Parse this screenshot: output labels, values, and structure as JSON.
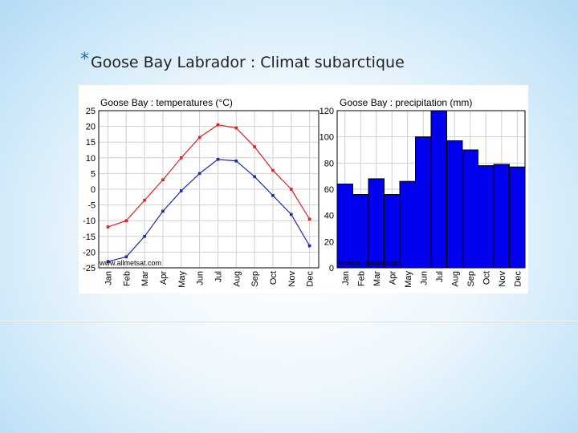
{
  "slide": {
    "bullet": "*",
    "title": "Goose Bay Labrador : Climat subarctique"
  },
  "chart_data": [
    {
      "type": "line",
      "title": "Goose Bay : temperatures (°C)",
      "categories": [
        "Jan",
        "Feb",
        "Mar",
        "Apr",
        "May",
        "Jun",
        "Jul",
        "Aug",
        "Sep",
        "Oct",
        "Nov",
        "Dec"
      ],
      "yticks": [
        "25",
        "20",
        "15",
        "10",
        "5",
        "0",
        "-5",
        "-10",
        "-15",
        "-20",
        "-25"
      ],
      "ylim": [
        -25,
        25
      ],
      "grid": true,
      "watermark": "www.allmetsat.com",
      "series": [
        {
          "color": "#dd2222",
          "values": [
            -12,
            -10,
            -3.5,
            3,
            10,
            16.5,
            20.5,
            19.5,
            13.5,
            6,
            0,
            -9.5
          ]
        },
        {
          "color": "#1a2aa8",
          "values": [
            -23,
            -21.5,
            -15,
            -7,
            -0.5,
            5,
            9.5,
            9,
            4,
            -2,
            -8,
            -18
          ]
        }
      ]
    },
    {
      "type": "bar",
      "title": "Goose Bay : precipitation (mm)",
      "categories": [
        "Jan",
        "Feb",
        "Mar",
        "Apr",
        "May",
        "Jun",
        "Jul",
        "Aug",
        "Sep",
        "Oct",
        "Nov",
        "Dec"
      ],
      "values": [
        64,
        56,
        68,
        56,
        66,
        100,
        120,
        97,
        90,
        78,
        79,
        77
      ],
      "yticks": [
        "120",
        "100",
        "80",
        "60",
        "40",
        "20",
        "0"
      ],
      "ylim": [
        0,
        120
      ],
      "bar_color": "#0000ee",
      "grid": true,
      "watermark": "www.allmetsat.com"
    }
  ]
}
